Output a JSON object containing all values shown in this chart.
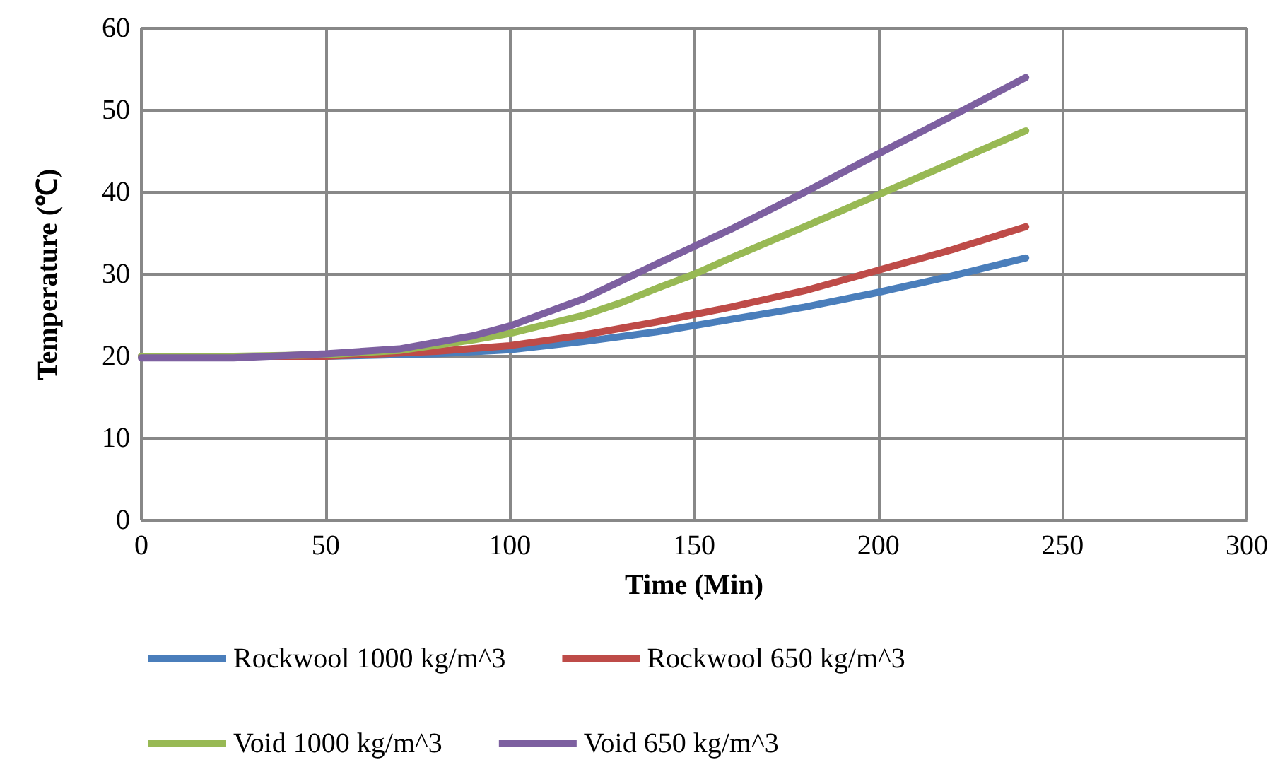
{
  "chart_data": {
    "type": "line",
    "xlabel": "Time (Min)",
    "ylabel": "Temperature (℃)",
    "xlim": [
      0,
      300
    ],
    "xticks": [
      0,
      50,
      100,
      150,
      200,
      250,
      300
    ],
    "ylim": [
      0,
      60
    ],
    "yticks": [
      0,
      10,
      20,
      30,
      40,
      50,
      60
    ],
    "grid": true,
    "legend": "bottom",
    "marker": "none",
    "line_style": "solid",
    "series": [
      {
        "name": "Rockwool 1000 kg/m^3",
        "color": "#4a7ebb",
        "x": [
          0,
          25,
          50,
          80,
          100,
          120,
          140,
          160,
          180,
          200,
          220,
          240
        ],
        "values": [
          20,
          20,
          20,
          20.3,
          20.8,
          21.8,
          23,
          24.5,
          26,
          27.8,
          29.8,
          32
        ]
      },
      {
        "name": "Rockwool 650 kg/m^3",
        "color": "#be4b48",
        "x": [
          0,
          25,
          50,
          80,
          100,
          120,
          140,
          160,
          180,
          200,
          220,
          240
        ],
        "values": [
          20,
          20,
          20,
          20.6,
          21.3,
          22.6,
          24.2,
          26,
          28,
          30.5,
          33,
          35.8
        ]
      },
      {
        "name": "Void 1000 kg/m^3",
        "color": "#98b954",
        "x": [
          0,
          25,
          50,
          70,
          90,
          100,
          120,
          130,
          140,
          150,
          160,
          180,
          200,
          220,
          240
        ],
        "values": [
          20,
          20,
          20.2,
          20.7,
          22,
          22.8,
          25,
          26.5,
          28.3,
          30,
          32,
          35.8,
          39.7,
          43.6,
          47.5
        ]
      },
      {
        "name": "Void 650 kg/m^3",
        "color": "#7d60a0",
        "x": [
          0,
          25,
          50,
          70,
          90,
          100,
          120,
          140,
          160,
          180,
          200,
          220,
          240
        ],
        "values": [
          19.8,
          19.8,
          20.3,
          20.9,
          22.5,
          23.7,
          27,
          31.3,
          35.5,
          40,
          44.7,
          49.3,
          54
        ]
      }
    ]
  }
}
